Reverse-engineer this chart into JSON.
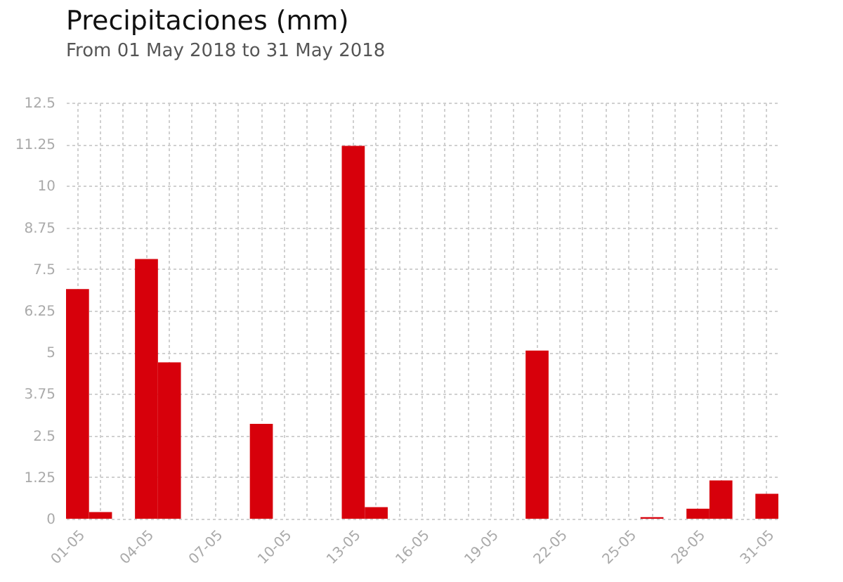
{
  "chart_data": {
    "type": "bar",
    "title": "Precipitaciones (mm)",
    "subtitle": "From 01 May 2018 to 31 May 2018",
    "categories": [
      "01-05",
      null,
      null,
      "04-05",
      null,
      null,
      "07-05",
      null,
      null,
      "10-05",
      null,
      null,
      "13-05",
      null,
      null,
      "16-05",
      null,
      null,
      "19-05",
      null,
      null,
      "22-05",
      null,
      null,
      "25-05",
      null,
      null,
      "28-05",
      null,
      null,
      "31-05"
    ],
    "values": [
      6.9,
      0.2,
      0,
      7.8,
      4.7,
      0,
      0,
      0,
      2.85,
      0,
      0,
      0,
      11.2,
      0.35,
      0,
      0,
      0,
      0,
      0,
      0,
      5.05,
      0,
      0,
      0,
      0,
      0.05,
      0,
      0.3,
      1.15,
      0,
      0.75
    ],
    "color": "#d7000b",
    "ylim": [
      0,
      12.5
    ],
    "yticks": [
      0,
      1.25,
      2.5,
      3.75,
      5,
      6.25,
      7.5,
      8.75,
      10,
      11.25,
      12.5
    ],
    "grid": true
  }
}
